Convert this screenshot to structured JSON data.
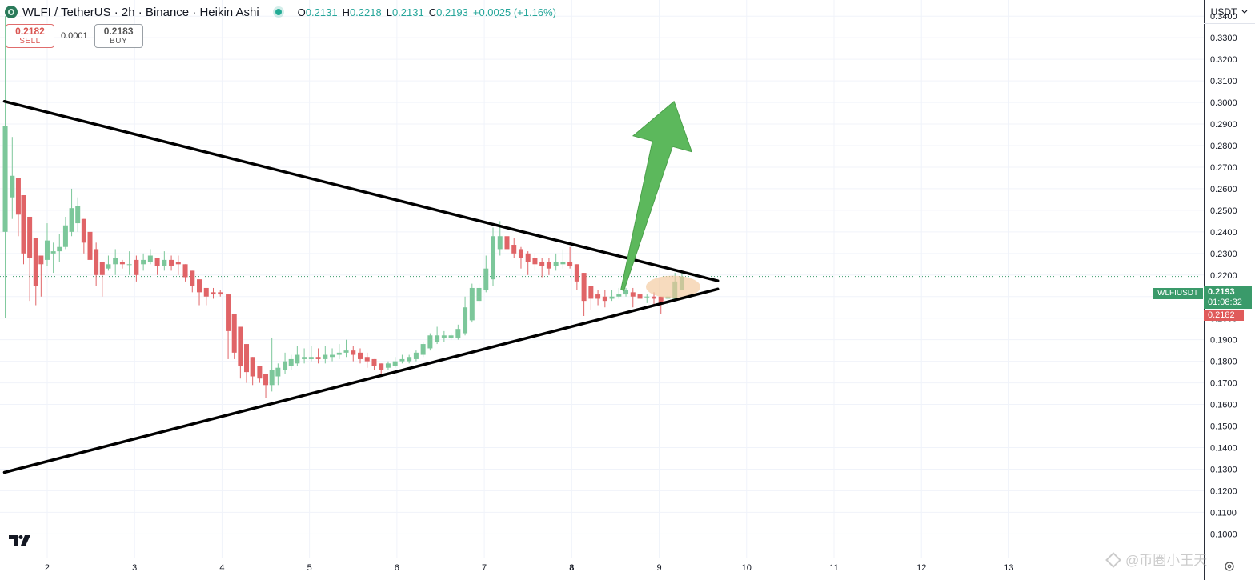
{
  "header": {
    "title": "WLFI / TetherUS · 2h · Binance · Heikin Ashi",
    "ohlc": [
      {
        "k": "O",
        "v": "0.2131"
      },
      {
        "k": "H",
        "v": "0.2218"
      },
      {
        "k": "L",
        "v": "0.2131"
      },
      {
        "k": "C",
        "v": "0.2193"
      },
      {
        "k": "",
        "v": "+0.0025 (+1.16%)"
      }
    ]
  },
  "trade": {
    "sell_price": "0.2182",
    "sell_label": "SELL",
    "spread": "0.0001",
    "buy_price": "0.2183",
    "buy_label": "BUY"
  },
  "currency": {
    "label": "USDT",
    "chevron": "chevron-down-icon"
  },
  "price_labels": {
    "symbol": "WLFIUSDT",
    "last_price": "0.2193",
    "countdown": "01:08:32",
    "bid_price": "0.2182"
  },
  "watermark": "@币圈小王天",
  "colors": {
    "up": "#26a69a",
    "down": "#ef5350",
    "up_candle": "#7cc79a",
    "down_candle": "#e06467",
    "trend_line": "#000000",
    "arrow": "#5cb85c",
    "highlight": "#f2c89b",
    "last_price_bg": "#3a9a6a",
    "bid_bg": "#e05a5a"
  },
  "chart_data": {
    "type": "candlestick",
    "chart_style": "Heikin Ashi",
    "symbol": "WLFI / TetherUS",
    "interval": "2h",
    "exchange": "Binance",
    "y_axis": {
      "range": [
        0.089,
        0.3475
      ],
      "ticks": [
        "0.3400",
        "0.3300",
        "0.3200",
        "0.3100",
        "0.3000",
        "0.2900",
        "0.2800",
        "0.2700",
        "0.2600",
        "0.2500",
        "0.2400",
        "0.2300",
        "0.2200",
        "0.2100",
        "0.2000",
        "0.1900",
        "0.1800",
        "0.1700",
        "0.1600",
        "0.1500",
        "0.1400",
        "0.1300",
        "0.1200",
        "0.1100",
        "0.1000"
      ],
      "position": "right",
      "currency": "USDT"
    },
    "x_axis": {
      "range": [
        1.46,
        15.23
      ],
      "ticks": [
        {
          "label": "2",
          "x": 2
        },
        {
          "label": "3",
          "x": 3
        },
        {
          "label": "4",
          "x": 4
        },
        {
          "label": "5",
          "x": 5
        },
        {
          "label": "6",
          "x": 6
        },
        {
          "label": "7",
          "x": 7
        },
        {
          "label": "8",
          "x": 8
        },
        {
          "label": "9",
          "x": 9
        },
        {
          "label": "10",
          "x": 10
        },
        {
          "label": "11",
          "x": 11
        },
        {
          "label": "12",
          "x": 12
        },
        {
          "label": "13",
          "x": 13
        }
      ],
      "bold_label": "8"
    },
    "grid": true,
    "last_price": 0.2193,
    "candles": [
      {
        "x": 1.52,
        "o": 0.24,
        "h": 0.34,
        "l": 0.2,
        "c": 0.289
      },
      {
        "x": 1.6,
        "o": 0.256,
        "h": 0.284,
        "l": 0.246,
        "c": 0.266
      },
      {
        "x": 1.67,
        "o": 0.265,
        "h": 0.265,
        "l": 0.238,
        "c": 0.248
      },
      {
        "x": 1.73,
        "o": 0.257,
        "h": 0.257,
        "l": 0.225,
        "c": 0.23
      },
      {
        "x": 1.8,
        "o": 0.247,
        "h": 0.247,
        "l": 0.208,
        "c": 0.228
      },
      {
        "x": 1.87,
        "o": 0.237,
        "h": 0.237,
        "l": 0.206,
        "c": 0.215
      },
      {
        "x": 1.93,
        "o": 0.229,
        "h": 0.229,
        "l": 0.21,
        "c": 0.225
      },
      {
        "x": 2.0,
        "o": 0.227,
        "h": 0.244,
        "l": 0.224,
        "c": 0.236
      },
      {
        "x": 2.07,
        "o": 0.23,
        "h": 0.235,
        "l": 0.221,
        "c": 0.231
      },
      {
        "x": 2.14,
        "o": 0.231,
        "h": 0.239,
        "l": 0.226,
        "c": 0.233
      },
      {
        "x": 2.21,
        "o": 0.233,
        "h": 0.247,
        "l": 0.232,
        "c": 0.243
      },
      {
        "x": 2.28,
        "o": 0.24,
        "h": 0.26,
        "l": 0.238,
        "c": 0.251
      },
      {
        "x": 2.35,
        "o": 0.244,
        "h": 0.256,
        "l": 0.24,
        "c": 0.252
      },
      {
        "x": 2.42,
        "o": 0.246,
        "h": 0.246,
        "l": 0.23,
        "c": 0.235
      },
      {
        "x": 2.49,
        "o": 0.24,
        "h": 0.24,
        "l": 0.215,
        "c": 0.227
      },
      {
        "x": 2.56,
        "o": 0.232,
        "h": 0.235,
        "l": 0.215,
        "c": 0.22
      },
      {
        "x": 2.63,
        "o": 0.226,
        "h": 0.226,
        "l": 0.21,
        "c": 0.22
      },
      {
        "x": 2.7,
        "o": 0.223,
        "h": 0.229,
        "l": 0.222,
        "c": 0.225
      },
      {
        "x": 2.78,
        "o": 0.225,
        "h": 0.232,
        "l": 0.22,
        "c": 0.228
      },
      {
        "x": 2.86,
        "o": 0.226,
        "h": 0.227,
        "l": 0.223,
        "c": 0.225
      },
      {
        "x": 2.94,
        "o": 0.225,
        "h": 0.231,
        "l": 0.22,
        "c": 0.225
      },
      {
        "x": 3.02,
        "o": 0.227,
        "h": 0.229,
        "l": 0.217,
        "c": 0.22
      },
      {
        "x": 3.1,
        "o": 0.225,
        "h": 0.23,
        "l": 0.222,
        "c": 0.227
      },
      {
        "x": 3.18,
        "o": 0.226,
        "h": 0.232,
        "l": 0.225,
        "c": 0.229
      },
      {
        "x": 3.26,
        "o": 0.228,
        "h": 0.228,
        "l": 0.22,
        "c": 0.224
      },
      {
        "x": 3.34,
        "o": 0.224,
        "h": 0.231,
        "l": 0.222,
        "c": 0.227
      },
      {
        "x": 3.42,
        "o": 0.227,
        "h": 0.229,
        "l": 0.222,
        "c": 0.224
      },
      {
        "x": 3.5,
        "o": 0.226,
        "h": 0.229,
        "l": 0.22,
        "c": 0.225
      },
      {
        "x": 3.58,
        "o": 0.225,
        "h": 0.225,
        "l": 0.217,
        "c": 0.219
      },
      {
        "x": 3.66,
        "o": 0.222,
        "h": 0.222,
        "l": 0.212,
        "c": 0.215
      },
      {
        "x": 3.74,
        "o": 0.218,
        "h": 0.218,
        "l": 0.206,
        "c": 0.212
      },
      {
        "x": 3.82,
        "o": 0.214,
        "h": 0.214,
        "l": 0.206,
        "c": 0.21
      },
      {
        "x": 3.9,
        "o": 0.212,
        "h": 0.214,
        "l": 0.209,
        "c": 0.211
      },
      {
        "x": 3.98,
        "o": 0.212,
        "h": 0.213,
        "l": 0.21,
        "c": 0.211
      },
      {
        "x": 4.07,
        "o": 0.211,
        "h": 0.211,
        "l": 0.181,
        "c": 0.194
      },
      {
        "x": 4.14,
        "o": 0.202,
        "h": 0.202,
        "l": 0.181,
        "c": 0.184
      },
      {
        "x": 4.21,
        "o": 0.196,
        "h": 0.196,
        "l": 0.172,
        "c": 0.178
      },
      {
        "x": 4.28,
        "o": 0.188,
        "h": 0.188,
        "l": 0.17,
        "c": 0.175
      },
      {
        "x": 4.35,
        "o": 0.182,
        "h": 0.182,
        "l": 0.169,
        "c": 0.173
      },
      {
        "x": 4.43,
        "o": 0.178,
        "h": 0.178,
        "l": 0.17,
        "c": 0.172
      },
      {
        "x": 4.5,
        "o": 0.174,
        "h": 0.174,
        "l": 0.163,
        "c": 0.169
      },
      {
        "x": 4.57,
        "o": 0.169,
        "h": 0.191,
        "l": 0.166,
        "c": 0.176
      },
      {
        "x": 4.64,
        "o": 0.173,
        "h": 0.179,
        "l": 0.169,
        "c": 0.177
      },
      {
        "x": 4.72,
        "o": 0.176,
        "h": 0.184,
        "l": 0.174,
        "c": 0.18
      },
      {
        "x": 4.79,
        "o": 0.178,
        "h": 0.183,
        "l": 0.176,
        "c": 0.181
      },
      {
        "x": 4.86,
        "o": 0.179,
        "h": 0.187,
        "l": 0.178,
        "c": 0.183
      },
      {
        "x": 4.94,
        "o": 0.181,
        "h": 0.186,
        "l": 0.179,
        "c": 0.182
      },
      {
        "x": 5.02,
        "o": 0.181,
        "h": 0.187,
        "l": 0.18,
        "c": 0.182
      },
      {
        "x": 5.1,
        "o": 0.182,
        "h": 0.186,
        "l": 0.179,
        "c": 0.181
      },
      {
        "x": 5.18,
        "o": 0.181,
        "h": 0.187,
        "l": 0.179,
        "c": 0.183
      },
      {
        "x": 5.26,
        "o": 0.182,
        "h": 0.186,
        "l": 0.18,
        "c": 0.183
      },
      {
        "x": 5.34,
        "o": 0.183,
        "h": 0.188,
        "l": 0.181,
        "c": 0.184
      },
      {
        "x": 5.42,
        "o": 0.184,
        "h": 0.19,
        "l": 0.182,
        "c": 0.185
      },
      {
        "x": 5.5,
        "o": 0.185,
        "h": 0.187,
        "l": 0.18,
        "c": 0.183
      },
      {
        "x": 5.58,
        "o": 0.184,
        "h": 0.186,
        "l": 0.179,
        "c": 0.181
      },
      {
        "x": 5.66,
        "o": 0.182,
        "h": 0.184,
        "l": 0.177,
        "c": 0.18
      },
      {
        "x": 5.74,
        "o": 0.181,
        "h": 0.181,
        "l": 0.176,
        "c": 0.178
      },
      {
        "x": 5.82,
        "o": 0.179,
        "h": 0.179,
        "l": 0.174,
        "c": 0.176
      },
      {
        "x": 5.9,
        "o": 0.177,
        "h": 0.18,
        "l": 0.176,
        "c": 0.179
      },
      {
        "x": 5.98,
        "o": 0.178,
        "h": 0.182,
        "l": 0.177,
        "c": 0.18
      },
      {
        "x": 6.06,
        "o": 0.18,
        "h": 0.183,
        "l": 0.179,
        "c": 0.181
      },
      {
        "x": 6.14,
        "o": 0.18,
        "h": 0.183,
        "l": 0.179,
        "c": 0.182
      },
      {
        "x": 6.22,
        "o": 0.181,
        "h": 0.185,
        "l": 0.18,
        "c": 0.184
      },
      {
        "x": 6.3,
        "o": 0.183,
        "h": 0.189,
        "l": 0.182,
        "c": 0.188
      },
      {
        "x": 6.38,
        "o": 0.186,
        "h": 0.193,
        "l": 0.185,
        "c": 0.192
      },
      {
        "x": 6.46,
        "o": 0.189,
        "h": 0.196,
        "l": 0.188,
        "c": 0.192
      },
      {
        "x": 6.54,
        "o": 0.191,
        "h": 0.194,
        "l": 0.189,
        "c": 0.192
      },
      {
        "x": 6.62,
        "o": 0.191,
        "h": 0.193,
        "l": 0.19,
        "c": 0.192
      },
      {
        "x": 6.7,
        "o": 0.191,
        "h": 0.197,
        "l": 0.19,
        "c": 0.195
      },
      {
        "x": 6.78,
        "o": 0.193,
        "h": 0.21,
        "l": 0.192,
        "c": 0.205
      },
      {
        "x": 6.86,
        "o": 0.199,
        "h": 0.216,
        "l": 0.198,
        "c": 0.214
      },
      {
        "x": 6.94,
        "o": 0.208,
        "h": 0.216,
        "l": 0.206,
        "c": 0.214
      },
      {
        "x": 7.02,
        "o": 0.213,
        "h": 0.229,
        "l": 0.212,
        "c": 0.223
      },
      {
        "x": 7.1,
        "o": 0.218,
        "h": 0.242,
        "l": 0.215,
        "c": 0.238
      },
      {
        "x": 7.18,
        "o": 0.232,
        "h": 0.245,
        "l": 0.229,
        "c": 0.238
      },
      {
        "x": 7.26,
        "o": 0.238,
        "h": 0.244,
        "l": 0.23,
        "c": 0.232
      },
      {
        "x": 7.34,
        "o": 0.234,
        "h": 0.237,
        "l": 0.228,
        "c": 0.23
      },
      {
        "x": 7.42,
        "o": 0.232,
        "h": 0.233,
        "l": 0.223,
        "c": 0.228
      },
      {
        "x": 7.5,
        "o": 0.23,
        "h": 0.231,
        "l": 0.22,
        "c": 0.226
      },
      {
        "x": 7.58,
        "o": 0.228,
        "h": 0.23,
        "l": 0.222,
        "c": 0.225
      },
      {
        "x": 7.66,
        "o": 0.226,
        "h": 0.228,
        "l": 0.219,
        "c": 0.224
      },
      {
        "x": 7.74,
        "o": 0.226,
        "h": 0.228,
        "l": 0.22,
        "c": 0.223
      },
      {
        "x": 7.82,
        "o": 0.224,
        "h": 0.23,
        "l": 0.222,
        "c": 0.226
      },
      {
        "x": 7.9,
        "o": 0.225,
        "h": 0.232,
        "l": 0.223,
        "c": 0.226
      },
      {
        "x": 7.98,
        "o": 0.226,
        "h": 0.233,
        "l": 0.223,
        "c": 0.224
      },
      {
        "x": 8.06,
        "o": 0.225,
        "h": 0.225,
        "l": 0.213,
        "c": 0.217
      },
      {
        "x": 8.14,
        "o": 0.221,
        "h": 0.221,
        "l": 0.201,
        "c": 0.208
      },
      {
        "x": 8.22,
        "o": 0.215,
        "h": 0.215,
        "l": 0.204,
        "c": 0.209
      },
      {
        "x": 8.3,
        "o": 0.211,
        "h": 0.213,
        "l": 0.206,
        "c": 0.209
      },
      {
        "x": 8.38,
        "o": 0.21,
        "h": 0.213,
        "l": 0.205,
        "c": 0.208
      },
      {
        "x": 8.46,
        "o": 0.209,
        "h": 0.213,
        "l": 0.208,
        "c": 0.21
      },
      {
        "x": 8.54,
        "o": 0.21,
        "h": 0.214,
        "l": 0.209,
        "c": 0.211
      },
      {
        "x": 8.62,
        "o": 0.211,
        "h": 0.214,
        "l": 0.21,
        "c": 0.213
      },
      {
        "x": 8.7,
        "o": 0.212,
        "h": 0.214,
        "l": 0.205,
        "c": 0.21
      },
      {
        "x": 8.78,
        "o": 0.211,
        "h": 0.213,
        "l": 0.207,
        "c": 0.209
      },
      {
        "x": 8.86,
        "o": 0.21,
        "h": 0.211,
        "l": 0.207,
        "c": 0.21
      },
      {
        "x": 8.94,
        "o": 0.21,
        "h": 0.212,
        "l": 0.206,
        "c": 0.209
      },
      {
        "x": 9.02,
        "o": 0.21,
        "h": 0.21,
        "l": 0.202,
        "c": 0.207
      },
      {
        "x": 9.1,
        "o": 0.209,
        "h": 0.212,
        "l": 0.205,
        "c": 0.21
      },
      {
        "x": 9.18,
        "o": 0.209,
        "h": 0.221,
        "l": 0.208,
        "c": 0.217
      },
      {
        "x": 9.26,
        "o": 0.2131,
        "h": 0.2218,
        "l": 0.2131,
        "c": 0.2193
      }
    ],
    "annotations": {
      "triangle_upper_line": [
        {
          "x": 1.51,
          "y": 0.3005
        },
        {
          "x": 9.67,
          "y": 0.2173
        }
      ],
      "triangle_lower_line": [
        {
          "x": 1.51,
          "y": 0.1285
        },
        {
          "x": 9.67,
          "y": 0.2135
        }
      ],
      "breakout_arrow": [
        {
          "x": 8.58,
          "y": 0.213
        },
        {
          "x": 9.17,
          "y": 0.3005
        }
      ],
      "highlight_ellipse": {
        "x": 9.16,
        "y": 0.2145
      }
    }
  }
}
